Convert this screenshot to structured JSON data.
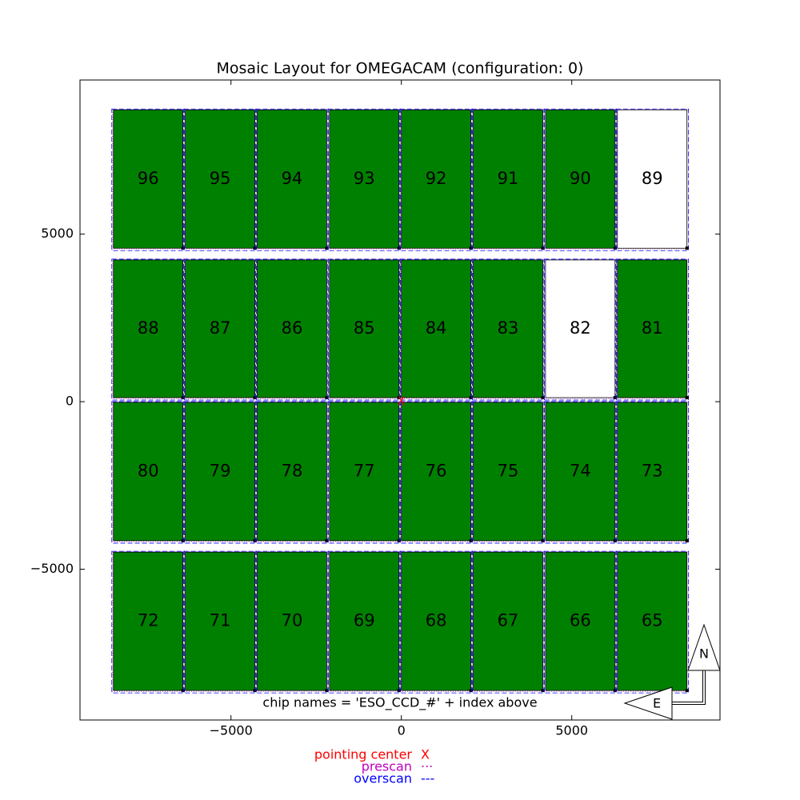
{
  "chart_data": {
    "type": "mosaic",
    "title": "Mosaic Layout for OMEGACAM (configuration: 0)",
    "note": "chip names = 'ESO_CCD_#' + index above",
    "xlim": [
      -9430,
      9350
    ],
    "ylim": [
      -9500,
      9600
    ],
    "xticks": [
      {
        "value": -5000,
        "label": "−5000"
      },
      0,
      5000
    ],
    "yticks": [
      {
        "value": -5000,
        "label": "−5000"
      },
      0,
      5000
    ],
    "pointing_center": {
      "x": 0,
      "y": 0
    },
    "chips": [
      {
        "label": "96",
        "x": [
          -8450,
          -6410
        ],
        "y": [
          4580,
          8710
        ],
        "color": "#008000"
      },
      {
        "label": "95",
        "x": [
          -6340,
          -4300
        ],
        "y": [
          4580,
          8710
        ],
        "color": "#008000"
      },
      {
        "label": "94",
        "x": [
          -4230,
          -2190
        ],
        "y": [
          4580,
          8710
        ],
        "color": "#008000"
      },
      {
        "label": "93",
        "x": [
          -2110,
          -70
        ],
        "y": [
          4580,
          8710
        ],
        "color": "#008000"
      },
      {
        "label": "92",
        "x": [
          0,
          2040
        ],
        "y": [
          4580,
          8710
        ],
        "color": "#008000"
      },
      {
        "label": "91",
        "x": [
          2110,
          4150
        ],
        "y": [
          4580,
          8710
        ],
        "color": "#008000"
      },
      {
        "label": "90",
        "x": [
          4230,
          6270
        ],
        "y": [
          4580,
          8710
        ],
        "color": "#008000"
      },
      {
        "label": "89",
        "x": [
          6340,
          8380
        ],
        "y": [
          4580,
          8710
        ],
        "color": "#ffffff"
      },
      {
        "label": "88",
        "x": [
          -8450,
          -6410
        ],
        "y": [
          120,
          4230
        ],
        "color": "#008000"
      },
      {
        "label": "87",
        "x": [
          -6340,
          -4300
        ],
        "y": [
          120,
          4230
        ],
        "color": "#008000"
      },
      {
        "label": "86",
        "x": [
          -4230,
          -2190
        ],
        "y": [
          120,
          4230
        ],
        "color": "#008000"
      },
      {
        "label": "85",
        "x": [
          -2110,
          -70
        ],
        "y": [
          120,
          4230
        ],
        "color": "#008000"
      },
      {
        "label": "84",
        "x": [
          0,
          2040
        ],
        "y": [
          120,
          4230
        ],
        "color": "#008000"
      },
      {
        "label": "83",
        "x": [
          2110,
          4150
        ],
        "y": [
          120,
          4230
        ],
        "color": "#008000"
      },
      {
        "label": "82",
        "x": [
          4230,
          6270
        ],
        "y": [
          120,
          4230
        ],
        "color": "#ffffff"
      },
      {
        "label": "81",
        "x": [
          6340,
          8380
        ],
        "y": [
          120,
          4230
        ],
        "color": "#008000"
      },
      {
        "label": "80",
        "x": [
          -8450,
          -6410
        ],
        "y": [
          -4150,
          -20
        ],
        "color": "#008000"
      },
      {
        "label": "79",
        "x": [
          -6340,
          -4300
        ],
        "y": [
          -4150,
          -20
        ],
        "color": "#008000"
      },
      {
        "label": "78",
        "x": [
          -4230,
          -2190
        ],
        "y": [
          -4150,
          -20
        ],
        "color": "#008000"
      },
      {
        "label": "77",
        "x": [
          -2110,
          -70
        ],
        "y": [
          -4150,
          -20
        ],
        "color": "#008000"
      },
      {
        "label": "76",
        "x": [
          0,
          2040
        ],
        "y": [
          -4150,
          -20
        ],
        "color": "#008000"
      },
      {
        "label": "75",
        "x": [
          2110,
          4150
        ],
        "y": [
          -4150,
          -20
        ],
        "color": "#008000"
      },
      {
        "label": "74",
        "x": [
          4230,
          6270
        ],
        "y": [
          -4150,
          -20
        ],
        "color": "#008000"
      },
      {
        "label": "73",
        "x": [
          6340,
          8380
        ],
        "y": [
          -4150,
          -20
        ],
        "color": "#008000"
      },
      {
        "label": "72",
        "x": [
          -8450,
          -6410
        ],
        "y": [
          -8620,
          -4490
        ],
        "color": "#008000"
      },
      {
        "label": "71",
        "x": [
          -6340,
          -4300
        ],
        "y": [
          -8620,
          -4490
        ],
        "color": "#008000"
      },
      {
        "label": "70",
        "x": [
          -4230,
          -2190
        ],
        "y": [
          -8620,
          -4490
        ],
        "color": "#008000"
      },
      {
        "label": "69",
        "x": [
          -2110,
          -70
        ],
        "y": [
          -8620,
          -4490
        ],
        "color": "#008000"
      },
      {
        "label": "68",
        "x": [
          0,
          2040
        ],
        "y": [
          -8620,
          -4490
        ],
        "color": "#008000"
      },
      {
        "label": "67",
        "x": [
          2110,
          4150
        ],
        "y": [
          -8620,
          -4490
        ],
        "color": "#008000"
      },
      {
        "label": "66",
        "x": [
          4230,
          6270
        ],
        "y": [
          -8620,
          -4490
        ],
        "color": "#008000"
      },
      {
        "label": "65",
        "x": [
          6340,
          8380
        ],
        "y": [
          -8620,
          -4490
        ],
        "color": "#008000"
      }
    ],
    "legend": [
      {
        "name": "pointing center",
        "symbol": "X",
        "color": "#ff0000"
      },
      {
        "name": "prescan",
        "symbol": "···",
        "color": "#bf00bf"
      },
      {
        "name": "overscan",
        "symbol": "---",
        "color": "#0000ff"
      }
    ],
    "compass": {
      "north": "N",
      "east": "E"
    }
  }
}
